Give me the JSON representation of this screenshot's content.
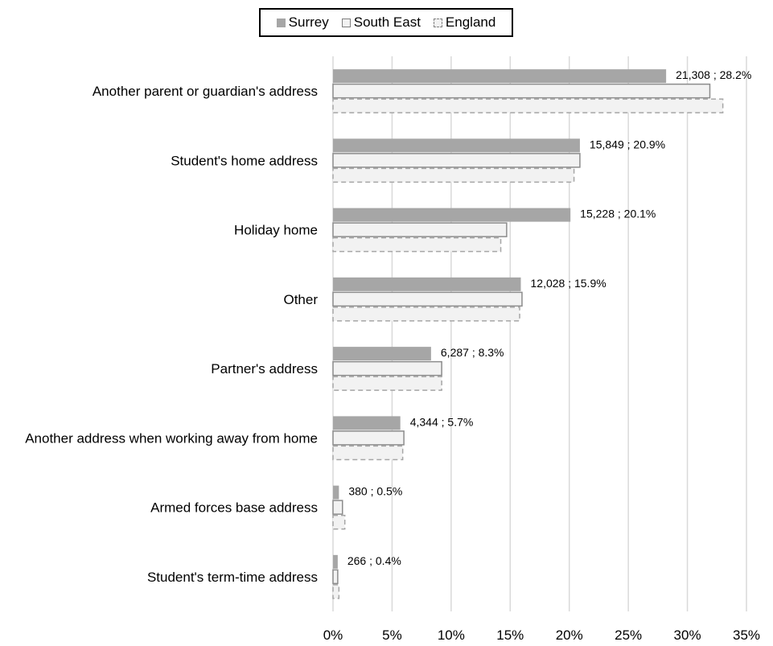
{
  "chart_data": {
    "type": "bar",
    "orientation": "horizontal",
    "categories": [
      "Another parent or guardian's address",
      "Student's home address",
      "Holiday home",
      "Other",
      "Partner's address",
      "Another address when working away from home",
      "Armed forces base address",
      "Student's term-time address"
    ],
    "series": [
      {
        "name": "Surrey",
        "values": [
          28.2,
          20.9,
          20.1,
          15.9,
          8.3,
          5.7,
          0.5,
          0.4
        ],
        "color": "#a6a6a6"
      },
      {
        "name": "South East",
        "values": [
          31.9,
          20.9,
          14.7,
          16.0,
          9.2,
          6.0,
          0.8,
          0.4
        ],
        "color": "#f2f2f2"
      },
      {
        "name": "England",
        "values": [
          33.0,
          20.4,
          14.2,
          15.8,
          9.2,
          5.9,
          1.0,
          0.5
        ],
        "color": "#f2f2f2"
      }
    ],
    "data_labels": [
      "21,308 ; 28.2%",
      "15,849 ; 20.9%",
      "15,228 ; 20.1%",
      "12,028 ; 15.9%",
      "6,287 ; 8.3%",
      "4,344 ; 5.7%",
      "380 ; 0.5%",
      "266 ; 0.4%"
    ],
    "x_ticks": [
      "0%",
      "5%",
      "10%",
      "15%",
      "20%",
      "25%",
      "30%",
      "35%"
    ],
    "xlim": [
      0,
      35
    ],
    "grid": true,
    "legend_position": "top"
  }
}
